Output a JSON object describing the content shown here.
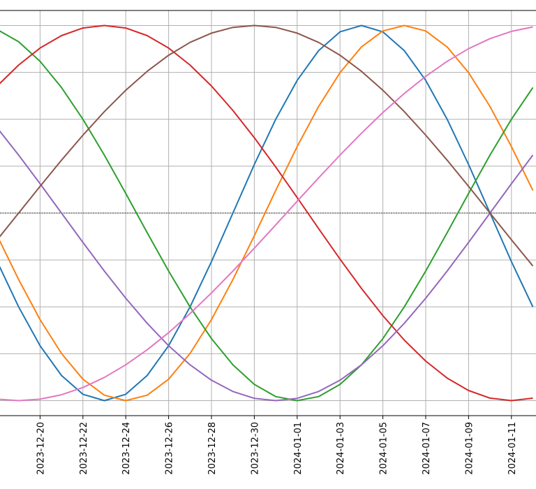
{
  "chart_data": {
    "type": "line",
    "title": "",
    "xlabel": "",
    "ylabel": "",
    "grid": true,
    "x_start": "2023-12-18",
    "x_end": "2024-01-12",
    "x_tick_labels": [
      "2023-12-20",
      "2023-12-22",
      "2023-12-24",
      "2023-12-26",
      "2023-12-28",
      "2023-12-30",
      "2024-01-01",
      "2024-01-03",
      "2024-01-05",
      "2024-01-07",
      "2024-01-09",
      "2024-01-11"
    ],
    "ylim": [
      -1.08,
      1.08
    ],
    "y_gridlines": [
      -1.0,
      -0.75,
      -0.5,
      -0.25,
      0.0,
      0.25,
      0.5,
      0.75,
      1.0
    ],
    "zero_line": true,
    "series": [
      {
        "color": "#1f77b4",
        "start": "2023-12-18",
        "period_days": 24,
        "peak_date": "2024-01-04",
        "amplitude": 1.0
      },
      {
        "color": "#ff7f0e",
        "start": "2023-12-18",
        "period_days": 26,
        "peak_date": "2024-01-06",
        "amplitude": 1.0
      },
      {
        "color": "#2ca02c",
        "start": "2023-12-18",
        "period_days": 30,
        "peak_date": "2023-12-17",
        "amplitude": 1.0
      },
      {
        "color": "#d62728",
        "start": "2023-12-18",
        "period_days": 38,
        "peak_date": "2023-12-23",
        "amplitude": 1.0
      },
      {
        "color": "#9467bd",
        "start": "2023-12-18",
        "period_days": 40,
        "peak_date": "2023-12-11",
        "amplitude": 1.0
      },
      {
        "color": "#8c564b",
        "start": "2023-12-18",
        "period_days": 44,
        "peak_date": "2023-12-30",
        "amplitude": 1.0
      },
      {
        "color": "#e377c2",
        "start": "2023-12-18",
        "period_days": 50,
        "peak_date": "2024-01-13",
        "amplitude": 1.0
      }
    ]
  }
}
